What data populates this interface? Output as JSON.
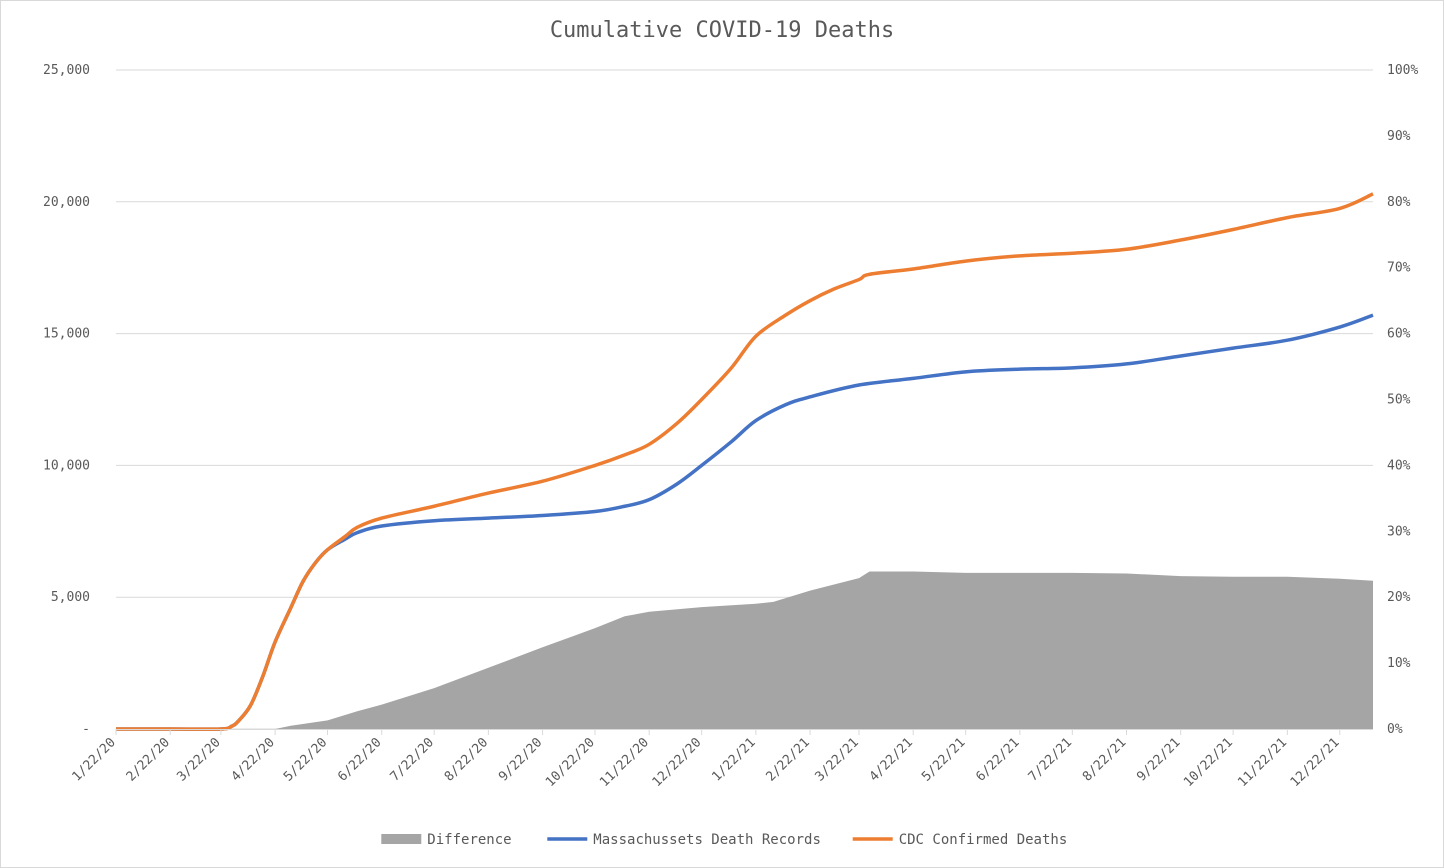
{
  "chart_data": {
    "type": "line",
    "title": "Cumulative COVID-19 Deaths",
    "x_tick_labels": [
      "1/22/20",
      "2/22/20",
      "3/22/20",
      "4/22/20",
      "5/22/20",
      "6/22/20",
      "7/22/20",
      "8/22/20",
      "9/22/20",
      "10/22/20",
      "11/22/20",
      "12/22/20",
      "1/22/21",
      "2/22/21",
      "3/22/21",
      "4/22/21",
      "5/22/21",
      "6/22/21",
      "7/22/21",
      "8/22/21",
      "9/22/21",
      "10/22/21",
      "11/22/21",
      "12/22/21"
    ],
    "y_left": {
      "ylim": [
        0,
        25000
      ],
      "tick_labels": [
        "-",
        "5,000",
        "10,000",
        "15,000",
        "20,000",
        "25,000"
      ]
    },
    "y_right": {
      "ylim": [
        0,
        1
      ],
      "tick_labels": [
        "0%",
        "10%",
        "20%",
        "30%",
        "40%",
        "50%",
        "60%",
        "70%",
        "80%",
        "90%",
        "100%"
      ]
    },
    "grid": true,
    "legend_position": "bottom",
    "x_end": "1/10/22",
    "series": [
      {
        "name": "Difference",
        "type": "area",
        "axis": "right",
        "color": "#a5a5a5",
        "x": [
          "4/22/20",
          "5/1/20",
          "5/22/20",
          "6/8/20",
          "6/22/20",
          "7/22/20",
          "8/22/20",
          "9/22/20",
          "10/22/20",
          "11/8/20",
          "11/22/20",
          "12/22/20",
          "1/22/21",
          "2/1/21",
          "2/22/21",
          "3/22/21",
          "3/28/21",
          "4/22/21",
          "5/22/21",
          "6/22/21",
          "7/22/21",
          "8/22/21",
          "9/22/21",
          "10/22/21",
          "11/22/21",
          "12/22/21",
          "1/10/22"
        ],
        "values": [
          0.0,
          0.005,
          0.013,
          0.027,
          0.037,
          0.062,
          0.093,
          0.124,
          0.153,
          0.171,
          0.178,
          0.185,
          0.19,
          0.193,
          0.21,
          0.229,
          0.239,
          0.239,
          0.237,
          0.237,
          0.237,
          0.236,
          0.232,
          0.231,
          0.231,
          0.228,
          0.225
        ]
      },
      {
        "name": "Massachussets Death Records",
        "type": "line",
        "axis": "left",
        "color": "#4472c4",
        "x": [
          "1/22/20",
          "2/22/20",
          "3/22/20",
          "3/28/20",
          "4/1/20",
          "4/8/20",
          "4/15/20",
          "4/22/20",
          "5/1/20",
          "5/8/20",
          "5/15/20",
          "5/22/20",
          "6/1/20",
          "6/8/20",
          "6/22/20",
          "7/22/20",
          "8/22/20",
          "9/22/20",
          "10/22/20",
          "11/8/20",
          "11/22/20",
          "12/8/20",
          "12/22/20",
          "1/8/21",
          "1/22/21",
          "2/8/21",
          "2/22/21",
          "3/22/21",
          "4/22/21",
          "5/22/21",
          "6/22/21",
          "7/22/21",
          "8/22/21",
          "9/22/21",
          "10/22/21",
          "11/22/21",
          "12/22/21",
          "1/10/22"
        ],
        "values": [
          0,
          0,
          0,
          100,
          300,
          900,
          2000,
          3300,
          4600,
          5600,
          6300,
          6800,
          7200,
          7450,
          7700,
          7900,
          8000,
          8100,
          8250,
          8450,
          8700,
          9300,
          10000,
          10900,
          11700,
          12300,
          12600,
          13050,
          13300,
          13550,
          13650,
          13700,
          13850,
          14150,
          14450,
          14750,
          15250,
          15700
        ]
      },
      {
        "name": "CDC Confirmed Deaths",
        "type": "line",
        "axis": "left",
        "color": "#ed7d31",
        "x": [
          "1/22/20",
          "2/22/20",
          "3/22/20",
          "3/28/20",
          "4/1/20",
          "4/8/20",
          "4/15/20",
          "4/22/20",
          "5/1/20",
          "5/8/20",
          "5/15/20",
          "5/22/20",
          "6/1/20",
          "6/8/20",
          "6/22/20",
          "7/22/20",
          "8/22/20",
          "9/22/20",
          "10/22/20",
          "11/8/20",
          "11/22/20",
          "12/8/20",
          "12/22/20",
          "1/8/21",
          "1/22/21",
          "2/8/21",
          "2/22/21",
          "3/8/21",
          "3/22/21",
          "3/28/21",
          "4/22/21",
          "5/22/21",
          "6/22/21",
          "7/22/21",
          "8/22/21",
          "9/22/21",
          "10/22/21",
          "11/22/21",
          "12/22/21",
          "1/10/22"
        ],
        "values": [
          0,
          0,
          0,
          100,
          300,
          900,
          2000,
          3300,
          4600,
          5600,
          6300,
          6800,
          7300,
          7650,
          8000,
          8450,
          8950,
          9400,
          10000,
          10400,
          10800,
          11600,
          12500,
          13700,
          14900,
          15700,
          16250,
          16700,
          17050,
          17250,
          17450,
          17750,
          17950,
          18050,
          18200,
          18550,
          18950,
          19400,
          19750,
          20300
        ]
      }
    ]
  }
}
